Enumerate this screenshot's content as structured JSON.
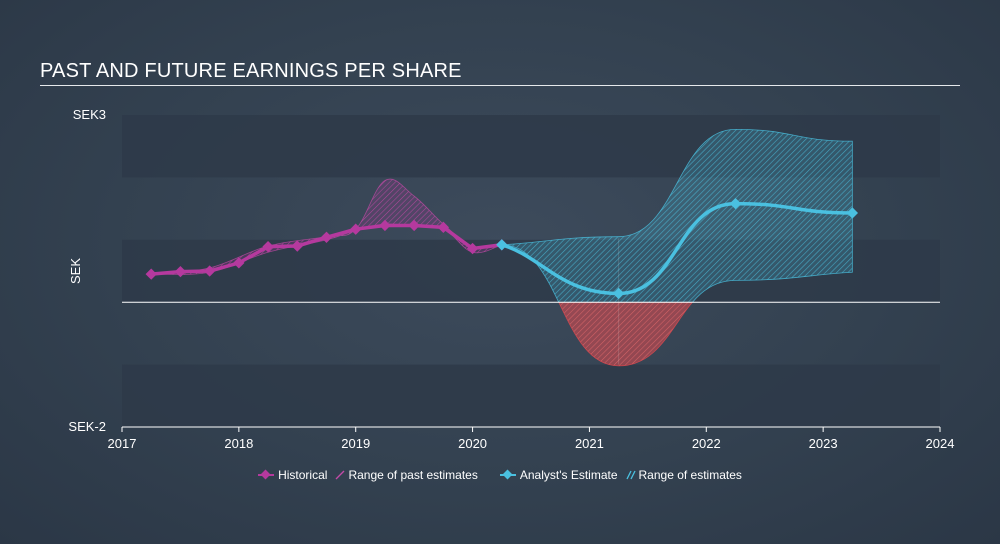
{
  "title": "PAST AND FUTURE EARNINGS PER SHARE",
  "colors": {
    "historical": "#b5399e",
    "past_range": "#b5399e",
    "estimate": "#4ac0e0",
    "estimate_range": "#4ac0e0",
    "negative_range": "#e0484f",
    "zero_line": "#ffffff",
    "band": "#2e3a49"
  },
  "chart_data": {
    "type": "line",
    "title": "PAST AND FUTURE EARNINGS PER SHARE",
    "ylabel": "SEK",
    "xlabel": "",
    "xlim": [
      2017,
      2024
    ],
    "ylim": [
      -2,
      3
    ],
    "y_tick_labels": [
      {
        "value": 3,
        "label": "SEK3"
      },
      {
        "value": -2,
        "label": "SEK-2"
      }
    ],
    "x_ticks": [
      "2017",
      "2018",
      "2019",
      "2020",
      "2021",
      "2022",
      "2023",
      "2024"
    ],
    "grid": "horizontal bands",
    "legend_position": "bottom-center",
    "series": [
      {
        "name": "Historical",
        "points": [
          [
            2017.25,
            0.45
          ],
          [
            2017.5,
            0.49
          ],
          [
            2017.75,
            0.5
          ],
          [
            2018.0,
            0.63
          ],
          [
            2018.25,
            0.89
          ],
          [
            2018.5,
            0.9
          ],
          [
            2018.75,
            1.04
          ],
          [
            2019.0,
            1.17
          ],
          [
            2019.25,
            1.23
          ],
          [
            2019.5,
            1.23
          ],
          [
            2019.75,
            1.2
          ],
          [
            2020.0,
            0.86
          ],
          [
            2020.25,
            0.92
          ]
        ]
      },
      {
        "name": "Analyst's Estimate",
        "points": [
          [
            2020.25,
            0.92
          ],
          [
            2021.25,
            0.14
          ],
          [
            2022.25,
            1.58
          ],
          [
            2023.25,
            1.43
          ]
        ]
      }
    ],
    "ranges": [
      {
        "name": "Range of past estimates",
        "upper": [
          [
            2017.25,
            0.45
          ],
          [
            2017.75,
            0.55
          ],
          [
            2018.25,
            0.9
          ],
          [
            2018.75,
            1.05
          ],
          [
            2019.0,
            1.17
          ],
          [
            2019.25,
            1.95
          ],
          [
            2019.5,
            1.7
          ],
          [
            2019.75,
            1.25
          ],
          [
            2020.0,
            0.9
          ],
          [
            2020.25,
            0.92
          ]
        ],
        "lower": [
          [
            2017.25,
            0.45
          ],
          [
            2017.75,
            0.48
          ],
          [
            2018.25,
            0.8
          ],
          [
            2018.75,
            1.0
          ],
          [
            2019.0,
            1.15
          ],
          [
            2019.25,
            1.25
          ],
          [
            2019.5,
            1.22
          ],
          [
            2019.75,
            1.18
          ],
          [
            2020.0,
            0.8
          ],
          [
            2020.25,
            0.92
          ]
        ]
      },
      {
        "name": "Range of estimates",
        "upper": [
          [
            2020.25,
            0.92
          ],
          [
            2021.25,
            1.05
          ],
          [
            2022.25,
            2.77
          ],
          [
            2023.25,
            2.58
          ]
        ],
        "lower": [
          [
            2020.25,
            0.92
          ],
          [
            2021.25,
            -1.02
          ],
          [
            2022.25,
            0.35
          ],
          [
            2023.25,
            0.48
          ]
        ]
      }
    ]
  },
  "legend": {
    "historical": "Historical",
    "past_range": "Range of past estimates",
    "estimate": "Analyst's Estimate",
    "estimate_range": "Range of estimates"
  }
}
